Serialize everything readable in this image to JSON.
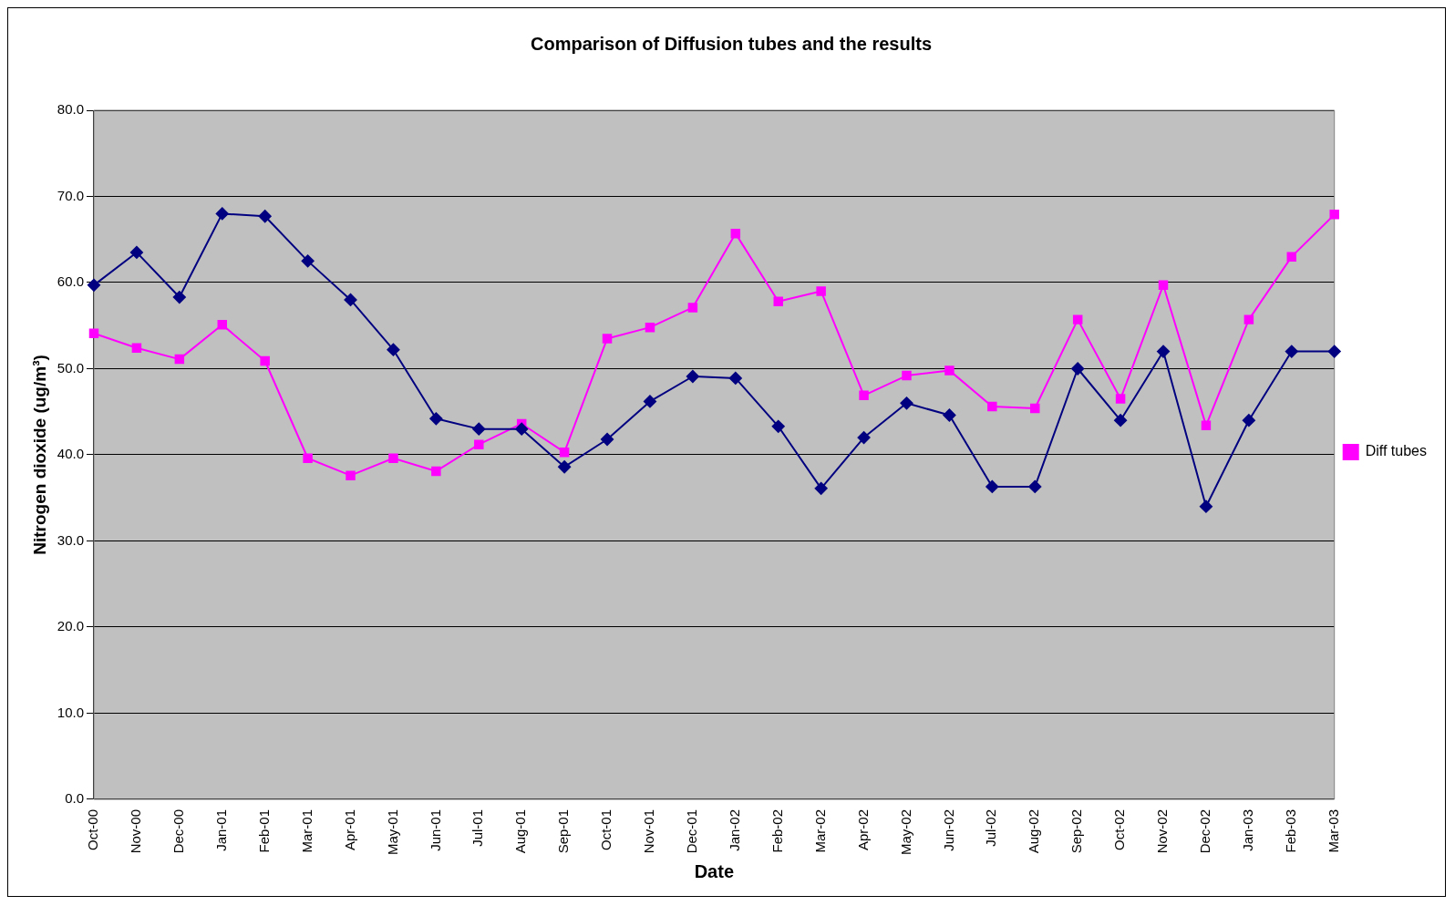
{
  "chart_data": {
    "type": "line",
    "title": "Comparison of Diffusion tubes and the results",
    "xlabel": "Date",
    "ylabel": "Nitrogen dioxide (ug/m³)",
    "categories": [
      "Oct-00",
      "Nov-00",
      "Dec-00",
      "Jan-01",
      "Feb-01",
      "Mar-01",
      "Apr-01",
      "May-01",
      "Jun-01",
      "Jul-01",
      "Aug-01",
      "Sep-01",
      "Oct-01",
      "Nov-01",
      "Dec-01",
      "Jan-02",
      "Feb-02",
      "Mar-02",
      "Apr-02",
      "May-02",
      "Jun-02",
      "Jul-02",
      "Aug-02",
      "Sep-02",
      "Oct-02",
      "Nov-02",
      "Dec-02",
      "Jan-03",
      "Feb-03",
      "Mar-03"
    ],
    "series": [
      {
        "color": "#000080",
        "marker": "diamond",
        "values": [
          59.7,
          63.5,
          58.3,
          68.0,
          67.7,
          62.5,
          58.0,
          52.2,
          44.2,
          43.0,
          43.0,
          38.6,
          41.8,
          46.2,
          49.1,
          48.9,
          43.3,
          36.1,
          42.0,
          46.0,
          44.6,
          36.3,
          36.3,
          50.0,
          44.0,
          52.0,
          34.0,
          44.0,
          52.0,
          52.0
        ]
      },
      {
        "name": "Diff tubes",
        "color": "#ff00ff",
        "marker": "square",
        "values": [
          54.1,
          52.4,
          51.1,
          55.1,
          50.9,
          39.6,
          37.6,
          39.6,
          38.1,
          41.2,
          43.6,
          40.3,
          53.5,
          54.8,
          57.1,
          65.7,
          57.8,
          59.0,
          46.9,
          49.2,
          49.8,
          45.6,
          45.4,
          55.7,
          46.5,
          59.7,
          43.4,
          55.7,
          63.0,
          67.9
        ]
      }
    ],
    "ylim": [
      0,
      80
    ],
    "yticks": [
      {
        "value": 0,
        "label": "0.0"
      },
      {
        "value": 10,
        "label": "10.0"
      },
      {
        "value": 20,
        "label": "20.0"
      },
      {
        "value": 30,
        "label": "30.0"
      },
      {
        "value": 40,
        "label": "40.0"
      },
      {
        "value": 50,
        "label": "50.0"
      },
      {
        "value": 60,
        "label": "60.0"
      },
      {
        "value": 70,
        "label": "70.0"
      },
      {
        "value": 80,
        "label": "80.0"
      }
    ],
    "grid": "y",
    "legend": "right"
  }
}
